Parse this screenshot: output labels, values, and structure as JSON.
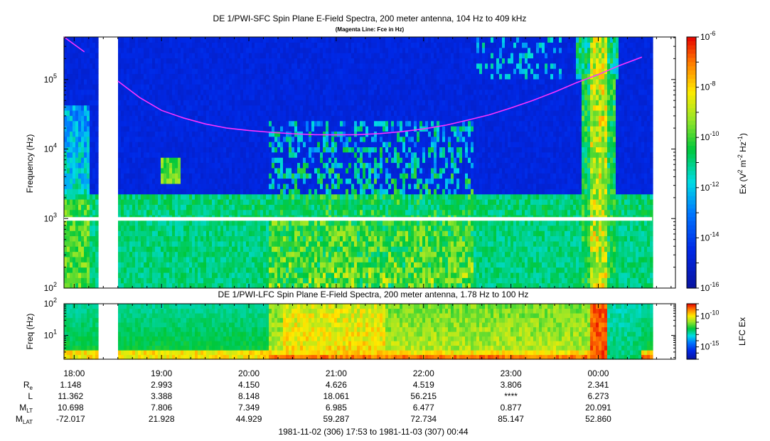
{
  "chart_data": [
    {
      "type": "heatmap",
      "title": "DE 1/PWI-SFC  Spin Plane E-Field Spectra, 200 meter antenna, 104 Hz to 409 kHz",
      "subtitle": "(Magenta Line: Fce in Hz)",
      "ylabel": "Frequency (Hz)",
      "y_scale": "log",
      "ylim": [
        100,
        409000
      ],
      "y_ticks": [
        {
          "value": 100,
          "base": "10",
          "exp": "2"
        },
        {
          "value": 1000,
          "base": "10",
          "exp": "3"
        },
        {
          "value": 10000,
          "base": "10",
          "exp": "4"
        },
        {
          "value": 100000,
          "base": "10",
          "exp": "5"
        }
      ],
      "colorbar": {
        "label_parts": [
          "Ex (V",
          "2",
          " m",
          "-2",
          " Hz",
          "-1",
          ")"
        ],
        "scale": "log",
        "range": [
          1e-16,
          1e-06
        ],
        "ticks": [
          {
            "value": 1e-06,
            "base": "10",
            "exp": "-6"
          },
          {
            "value": 1e-08,
            "base": "10",
            "exp": "-8"
          },
          {
            "value": 1e-10,
            "base": "10",
            "exp": "-10"
          },
          {
            "value": 1e-12,
            "base": "10",
            "exp": "-12"
          },
          {
            "value": 1e-14,
            "base": "10",
            "exp": "-14"
          },
          {
            "value": 1e-16,
            "base": "10",
            "exp": "-16"
          }
        ]
      },
      "data_gaps": [
        {
          "x_start": "18:15",
          "x_end": "18:30"
        },
        {
          "x_start": "00:37",
          "x_end": "00:53"
        }
      ],
      "fce_line": {
        "name": "Fce",
        "color": "#ff33ff",
        "segments": [
          {
            "x": [
              "17:53",
              "18:07"
            ],
            "y": [
              409000,
              250000
            ]
          },
          {
            "x": [
              "18:30",
              "18:45",
              "19:00",
              "19:15",
              "19:30",
              "19:45",
              "20:00",
              "20:15",
              "20:30",
              "20:45",
              "21:00",
              "21:15",
              "21:30",
              "21:45",
              "22:00",
              "22:15",
              "22:30",
              "22:45",
              "23:00",
              "23:15",
              "23:30",
              "23:45",
              "00:00",
              "00:15",
              "00:30"
            ],
            "y": [
              95000,
              55000,
              36000,
              28000,
              23000,
              20000,
              18500,
              17400,
              16600,
              16100,
              16000,
              16100,
              16700,
              17800,
              19500,
              22000,
              26000,
              31000,
              39000,
              50000,
              66000,
              90000,
              118000,
              160000,
              210000
            ]
          }
        ]
      },
      "features": [
        "broadband intense emission below ~4 kHz at start of pass (17:53-18:10)",
        "auroral hiss / whistler-mode bursts 20:15-22:30 extending to ~10 kHz",
        "intense broadband emission near 23:55-00:00 up to ~100 kHz",
        "weak band near 3-7 kHz around 19:00"
      ]
    },
    {
      "type": "heatmap",
      "title": "DE 1/PWI-LFC  Spin Plane E-Field Spectra, 200 meter antenna, 1.78 Hz to 100 Hz",
      "ylabel": "Freq (Hz)",
      "y_scale": "log",
      "ylim": [
        1.78,
        100
      ],
      "y_ticks": [
        {
          "value": 10,
          "base": "10",
          "exp": "1"
        },
        {
          "value": 100,
          "base": "10",
          "exp": "2"
        }
      ],
      "colorbar": {
        "label": "LFC Ex",
        "scale": "log",
        "range": [
          1e-17,
          1e-08
        ],
        "ticks": [
          {
            "value": 1e-10,
            "base": "10",
            "exp": "-10"
          },
          {
            "value": 1e-15,
            "base": "10",
            "exp": "-15"
          }
        ]
      },
      "data_gaps": [
        {
          "x_start": "18:15",
          "x_end": "18:30"
        },
        {
          "x_start": "00:37",
          "x_end": "00:53"
        }
      ],
      "features": [
        "intensity rises from ~20:15, strongest 20:30-21:30 and near 23:55"
      ]
    }
  ],
  "x_axis": {
    "start": "17:53",
    "end": "00:53",
    "tick_labels": [
      "18:00",
      "19:00",
      "20:00",
      "21:00",
      "22:00",
      "23:00",
      "00:00"
    ]
  },
  "ephemeris": {
    "rows": [
      {
        "label": "R",
        "sub": "e",
        "values": [
          "1.148",
          "2.993",
          "4.150",
          "4.626",
          "4.519",
          "3.806",
          "2.341"
        ]
      },
      {
        "label": "L",
        "sub": "",
        "values": [
          "11.362",
          "3.388",
          "8.148",
          "18.061",
          "56.215",
          "****",
          "6.273"
        ]
      },
      {
        "label": "M",
        "sub": "LT",
        "values": [
          "10.698",
          "7.806",
          "7.349",
          "6.985",
          "6.477",
          "0.877",
          "20.091"
        ]
      },
      {
        "label": "M",
        "sub": "LAT",
        "values": [
          "-72.017",
          "21.928",
          "44.929",
          "59.287",
          "72.734",
          "85.147",
          "52.860"
        ]
      }
    ]
  },
  "time_range": "1981-11-02 (306) 17:53 to 1981-11-03 (307) 00:44"
}
